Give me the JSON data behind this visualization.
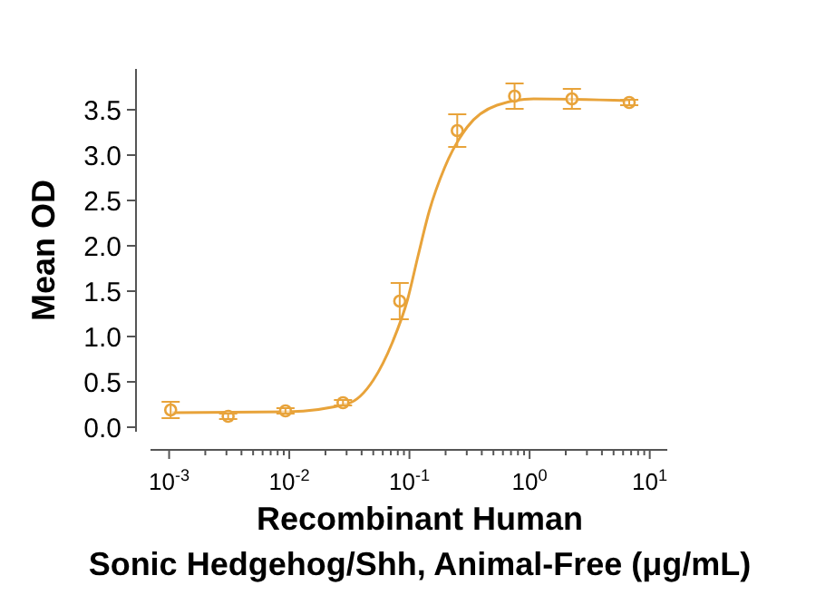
{
  "chart_data": {
    "type": "scatter",
    "xlabel": "Recombinant Human\nSonic Hedgehog/Shh, Animal-Free (μg/mL)",
    "ylabel": "Mean OD",
    "log": "x",
    "marker": "circle",
    "grid": false,
    "xlim": [
      0.0007,
      14
    ],
    "ylim": [
      -0.05,
      3.95
    ],
    "yticks": [
      {
        "value": 0.5,
        "label": "0.5"
      },
      {
        "value": 1,
        "label": "1.0"
      },
      {
        "value": 1.5,
        "label": "1.5"
      },
      {
        "value": 2,
        "label": "2.0"
      },
      {
        "value": 2.5,
        "label": "2.5"
      },
      {
        "value": 3,
        "label": "3.0"
      },
      {
        "value": 3.5,
        "label": "3.5"
      },
      {
        "value": 0,
        "label": "0.0"
      }
    ],
    "xticks": [
      {
        "value": 0.001,
        "label": "10$^{-3}$"
      },
      {
        "value": 0.01,
        "label": "10$^{-2}$"
      },
      {
        "value": 0.1,
        "label": "10$^{-1}$"
      },
      {
        "value": 1,
        "label": "10$^{0}$"
      },
      {
        "value": 10,
        "label": "10$^{1}$"
      },
      {
        "value": 0.002,
        "label": null
      },
      {
        "value": 0.003,
        "label": null
      },
      {
        "value": 0.004,
        "label": null
      },
      {
        "value": 0.005,
        "label": null
      },
      {
        "value": 0.006,
        "label": null
      },
      {
        "value": 0.007,
        "label": null
      },
      {
        "value": 0.008,
        "label": null
      },
      {
        "value": 0.009,
        "label": null
      },
      {
        "value": 0.02,
        "label": null
      },
      {
        "value": 0.03,
        "label": null
      },
      {
        "value": 0.04,
        "label": null
      },
      {
        "value": 0.05,
        "label": null
      },
      {
        "value": 0.06,
        "label": null
      },
      {
        "value": 0.07,
        "label": null
      },
      {
        "value": 0.08,
        "label": null
      },
      {
        "value": 0.09,
        "label": null
      },
      {
        "value": 0.2,
        "label": null
      },
      {
        "value": 0.3,
        "label": null
      },
      {
        "value": 0.4,
        "label": null
      },
      {
        "value": 0.5,
        "label": null
      },
      {
        "value": 0.6,
        "label": null
      },
      {
        "value": 0.7,
        "label": null
      },
      {
        "value": 0.8,
        "label": null
      },
      {
        "value": 0.9,
        "label": null
      },
      {
        "value": 2,
        "label": null
      },
      {
        "value": 3,
        "label": null
      },
      {
        "value": 4,
        "label": null
      },
      {
        "value": 5,
        "label": null
      },
      {
        "value": 6,
        "label": null
      },
      {
        "value": 7,
        "label": null
      },
      {
        "value": 8,
        "label": null
      },
      {
        "value": 9,
        "label": null
      }
    ],
    "series": [
      {
        "type": "line",
        "color": "#e8a33a",
        "marker": "none",
        "x": [
          0.00106,
          0.00966,
          0.0307,
          0.0501,
          0.0719,
          0.0966,
          0.118,
          0.146,
          0.196,
          0.303,
          0.535,
          1.08,
          6.75
        ],
        "values": [
          0.16,
          0.17,
          0.26,
          0.52,
          0.93,
          1.41,
          1.89,
          2.38,
          2.86,
          3.31,
          3.55,
          3.62,
          3.6
        ]
      },
      {
        "type": "scatter",
        "color": "#e8a33a",
        "x": [
          0.00103,
          0.0031,
          0.0093,
          0.028,
          0.083,
          0.25,
          0.75,
          2.25,
          6.75
        ],
        "values": [
          0.19,
          0.12,
          0.18,
          0.27,
          1.39,
          3.27,
          3.65,
          3.62,
          3.58
        ],
        "errors": [
          0.09,
          0.03,
          0.03,
          0.03,
          0.2,
          0.18,
          0.14,
          0.11,
          0.03
        ]
      }
    ]
  }
}
